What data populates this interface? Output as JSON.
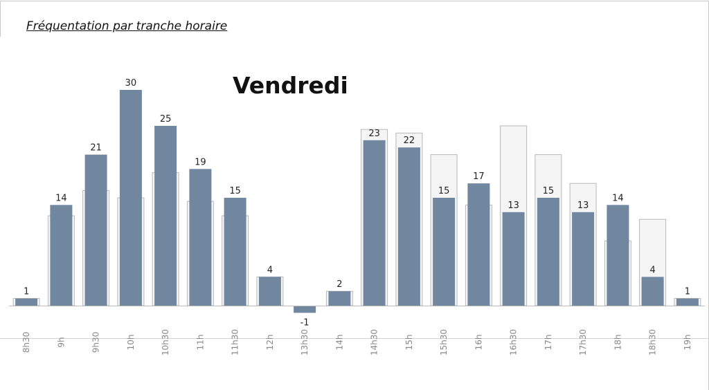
{
  "page": {
    "title": "Fréquentation par tranche horaire"
  },
  "chart_data": {
    "type": "bar",
    "title": "Vendredi",
    "categories": [
      "8h30",
      "9h",
      "9h30",
      "10h",
      "10h30",
      "11h",
      "11h30",
      "12h",
      "13h30",
      "14h",
      "14h30",
      "15h",
      "15h30",
      "16h",
      "16h30",
      "17h",
      "17h30",
      "18h",
      "18h30",
      "19h"
    ],
    "series": [
      {
        "values": [
          1,
          14,
          21,
          30,
          25,
          19,
          15,
          4,
          -1,
          2,
          23,
          22,
          15,
          17,
          13,
          15,
          13,
          14,
          4,
          1
        ]
      },
      {
        "values": [
          1,
          12.5,
          16,
          15,
          18.5,
          14.5,
          12.5,
          4,
          0,
          2,
          24.5,
          24,
          21,
          14,
          25,
          21,
          17,
          9,
          12,
          1
        ]
      }
    ],
    "ylim": [
      -2,
      31
    ],
    "legend": "none",
    "grid": false,
    "colors": {
      "current": "#71879f",
      "reference_fill": "#f5f5f5",
      "reference_stroke": "#b8b8b8"
    }
  }
}
